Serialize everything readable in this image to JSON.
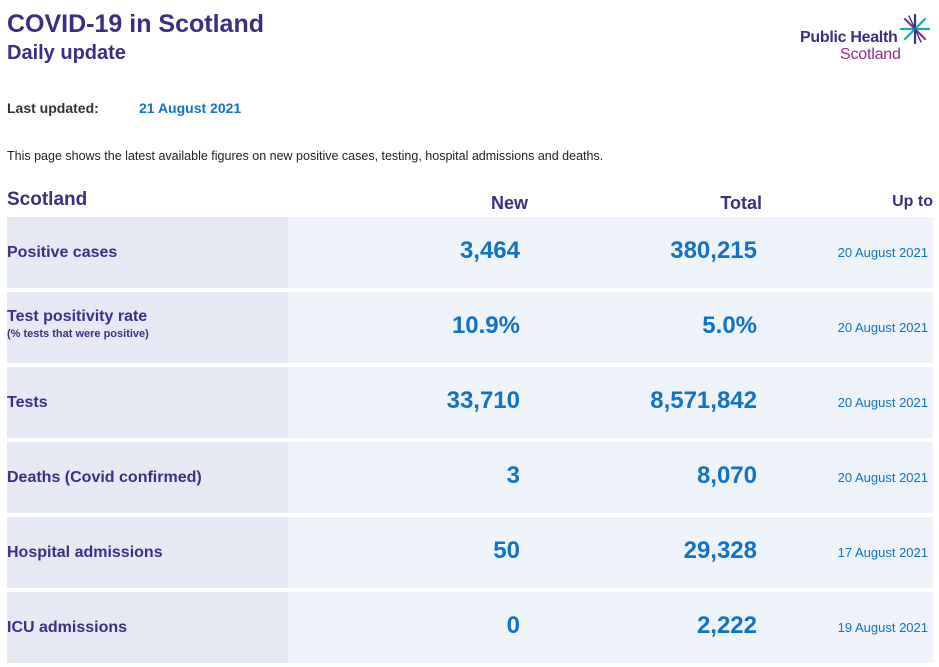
{
  "header": {
    "title": "COVID-19 in Scotland",
    "subtitle": "Daily update"
  },
  "logo": {
    "line1": "Public Health",
    "line2": "Scotland"
  },
  "updated": {
    "label": "Last updated:",
    "value": "21 August 2021"
  },
  "intro": "This page shows the latest available figures on new positive cases, testing, hospital admissions and deaths.",
  "table": {
    "headers": {
      "area": "Scotland",
      "new": "New",
      "total": "Total",
      "up_to": "Up to"
    },
    "rows": [
      {
        "label": "Positive cases",
        "sublabel": "",
        "new": "3,464",
        "total": "380,215",
        "up_to": "20 August 2021"
      },
      {
        "label": "Test positivity rate",
        "sublabel": "(% tests that were positive)",
        "new": "10.9%",
        "total": "5.0%",
        "up_to": "20 August 2021"
      },
      {
        "label": "Tests",
        "sublabel": "",
        "new": "33,710",
        "total": "8,571,842",
        "up_to": "20 August 2021"
      },
      {
        "label": "Deaths (Covid confirmed)",
        "sublabel": "",
        "new": "3",
        "total": "8,070",
        "up_to": "20 August 2021"
      },
      {
        "label": "Hospital admissions",
        "sublabel": "",
        "new": "50",
        "total": "29,328",
        "up_to": "17 August 2021"
      },
      {
        "label": "ICU admissions",
        "sublabel": "",
        "new": "0",
        "total": "2,222",
        "up_to": "19 August 2021"
      }
    ]
  },
  "colors": {
    "brand_purple": "#3d2e82",
    "value_blue": "#1273c6",
    "logo_magenta": "#8f2f8c",
    "logo_star_teal": "#1fa6b3"
  }
}
